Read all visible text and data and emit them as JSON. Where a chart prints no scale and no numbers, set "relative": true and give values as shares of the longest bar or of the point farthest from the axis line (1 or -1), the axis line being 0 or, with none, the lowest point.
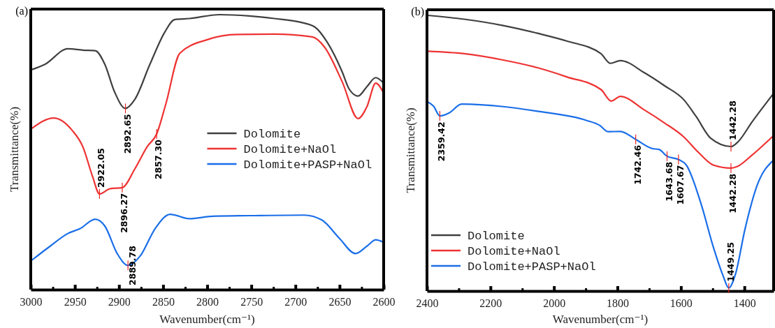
{
  "chart_data": [
    {
      "type": "line",
      "title": "(a)",
      "xlabel": "Wavenumber(cm⁻¹)",
      "ylabel": "Transmittance(%)",
      "relative": true,
      "legend": "right",
      "xlim": [
        3000,
        2600
      ],
      "xticks": [
        3000,
        {
          "value": 2975,
          "label": null
        },
        2950,
        {
          "value": 2925,
          "label": null
        },
        2900,
        {
          "value": 2875,
          "label": null
        },
        2850,
        {
          "value": 2825,
          "label": null
        },
        2800,
        {
          "value": 2775,
          "label": null
        },
        2750,
        {
          "value": 2725,
          "label": null
        },
        2700,
        {
          "value": 2675,
          "label": null
        },
        2650,
        {
          "value": 2625,
          "label": null
        },
        2600
      ],
      "series": [
        {
          "name": "Dolomite",
          "color": "#404040",
          "x": [
            2998,
            2984,
            2958,
            2941,
            2927,
            2916,
            2905,
            2892.65,
            2882,
            2865,
            2848,
            2837,
            2820,
            2786,
            2752,
            2724,
            2695,
            2678,
            2664,
            2647,
            2639,
            2629,
            2619,
            2609,
            2600
          ],
          "values": [
            0.801,
            0.819,
            0.876,
            0.871,
            0.869,
            0.819,
            0.719,
            0.659,
            0.692,
            0.819,
            0.937,
            0.982,
            0.986,
            1.0,
            0.995,
            0.986,
            0.973,
            0.955,
            0.9,
            0.792,
            0.729,
            0.704,
            0.738,
            0.771,
            0.751
          ]
        },
        {
          "name": "Dolomite+NaOl",
          "color": "#ee3333",
          "x": [
            2998,
            2974,
            2953,
            2941,
            2930,
            2922.05,
            2910,
            2896.27,
            2882,
            2868,
            2857.3,
            2847,
            2831,
            2800,
            2766,
            2724,
            2681,
            2667,
            2647,
            2629,
            2619,
            2609,
            2600
          ],
          "values": [
            0.588,
            0.624,
            0.579,
            0.52,
            0.412,
            0.348,
            0.367,
            0.371,
            0.439,
            0.52,
            0.566,
            0.674,
            0.86,
            0.909,
            0.928,
            0.929,
            0.919,
            0.882,
            0.756,
            0.622,
            0.665,
            0.751,
            0.715
          ]
        },
        {
          "name": "Dolomite+PASP+NaOl",
          "color": "#1a6ee8",
          "x": [
            2998,
            2978,
            2958,
            2944,
            2927,
            2916,
            2902,
            2889.78,
            2876,
            2859,
            2842,
            2820,
            2794,
            2752,
            2690,
            2670,
            2650,
            2632,
            2619,
            2609,
            2600
          ],
          "values": [
            0.109,
            0.158,
            0.204,
            0.222,
            0.256,
            0.231,
            0.131,
            0.088,
            0.122,
            0.222,
            0.274,
            0.258,
            0.267,
            0.269,
            0.271,
            0.253,
            0.186,
            0.131,
            0.158,
            0.181,
            0.172
          ]
        }
      ],
      "annotations": [
        {
          "text": "2892.65",
          "x": 2892.65,
          "y": 0.659
        },
        {
          "text": "2922.05",
          "x": 2922.05,
          "y": 0.348
        },
        {
          "text": "2896.27",
          "x": 2896.27,
          "y": 0.371
        },
        {
          "text": "2857.30",
          "x": 2857.3,
          "y": 0.566
        },
        {
          "text": "2889.78",
          "x": 2889.78,
          "y": 0.088
        }
      ]
    },
    {
      "type": "line",
      "title": "(b)",
      "xlabel": "Wavenumber(cm⁻¹)",
      "ylabel": "Transmittance(%)",
      "relative": true,
      "legend": "bottom left",
      "xlim": [
        2400,
        1308
      ],
      "xticks": [
        2400,
        {
          "value": 2300,
          "label": null
        },
        2200,
        {
          "value": 2100,
          "label": null
        },
        2000,
        {
          "value": 1900,
          "label": null
        },
        1800,
        {
          "value": 1700,
          "label": null
        },
        1600,
        {
          "value": 1500,
          "label": null
        },
        1400
      ],
      "series": [
        {
          "name": "Dolomite",
          "color": "#404040",
          "x": [
            2398,
            2283,
            2160,
            2052,
            1960,
            1852,
            1822,
            1791,
            1714,
            1652,
            1591,
            1552,
            1506,
            1442.28,
            1422,
            1375,
            1308
          ],
          "values": [
            1.0,
            0.986,
            0.963,
            0.935,
            0.907,
            0.861,
            0.826,
            0.836,
            0.791,
            0.745,
            0.694,
            0.633,
            0.554,
            0.524,
            0.539,
            0.615,
            0.717
          ]
        },
        {
          "name": "Dolomite+NaOl",
          "color": "#ee3333",
          "x": [
            2398,
            2283,
            2160,
            2052,
            1960,
            1852,
            1819,
            1791,
            1714,
            1652,
            1591,
            1545,
            1498,
            1442.28,
            1422,
            1375,
            1308
          ],
          "values": [
            0.87,
            0.861,
            0.838,
            0.81,
            0.777,
            0.731,
            0.689,
            0.706,
            0.656,
            0.61,
            0.559,
            0.503,
            0.457,
            0.446,
            0.452,
            0.494,
            0.564
          ]
        },
        {
          "name": "Dolomite+PASP+NaOl",
          "color": "#1a6ee8",
          "x": [
            2398,
            2379,
            2359.42,
            2329,
            2291,
            2160,
            2052,
            1898,
            1856,
            1829,
            1791,
            1742.46,
            1691,
            1668,
            1643.68,
            1607.67,
            1583,
            1537,
            1498,
            1468,
            1449.25,
            1429,
            1398,
            1360,
            1308
          ],
          "values": [
            0.686,
            0.67,
            0.635,
            0.647,
            0.678,
            0.669,
            0.652,
            0.619,
            0.601,
            0.578,
            0.579,
            0.55,
            0.517,
            0.513,
            0.489,
            0.477,
            0.457,
            0.318,
            0.16,
            0.058,
            0.011,
            0.058,
            0.225,
            0.383,
            0.475
          ]
        }
      ],
      "annotations": [
        {
          "text": "2359.42",
          "x": 2359.42,
          "y": 0.635
        },
        {
          "text": "1742.46",
          "x": 1742.46,
          "y": 0.55
        },
        {
          "text": "1643.68",
          "x": 1643.68,
          "y": 0.489
        },
        {
          "text": "1607.67",
          "x": 1607.67,
          "y": 0.477
        },
        {
          "text": "1442.28",
          "x": 1442.28,
          "y": 0.446
        },
        {
          "text": "1442.28",
          "x": 1442.28,
          "y": 0.524
        },
        {
          "text": "1449.25",
          "x": 1449.25,
          "y": 0.011
        }
      ]
    }
  ]
}
